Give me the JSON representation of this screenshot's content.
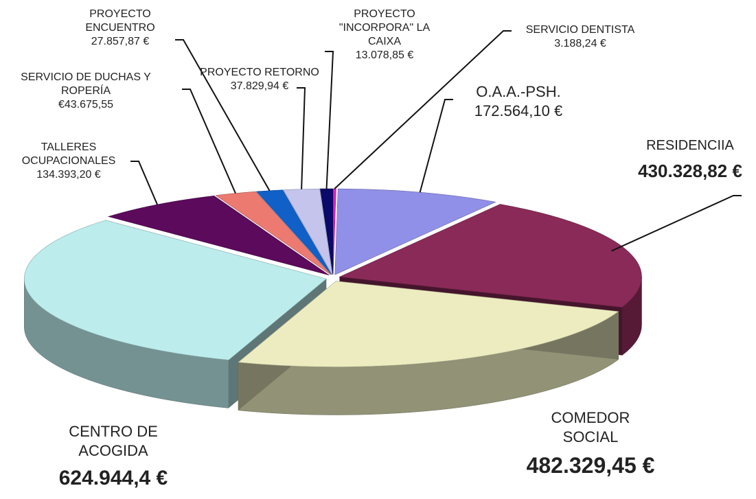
{
  "chart_data": {
    "type": "pie3d",
    "categories": [
      "O.A.A.-PSH.",
      "RESIDENCIIA",
      "COMEDOR SOCIAL",
      "CENTRO DE ACOGIDA",
      "TALLERES OCUPACIONALES",
      "SERVICIO DE DUCHAS Y ROPERÍA",
      "PROYECTO ENCUENTRO",
      "PROYECTO RETORNO",
      "PROYECTO \"INCORPORA\" LA CAIXA",
      "SERVICIO DENTISTA"
    ],
    "values": [
      172564.1,
      430328.82,
      482329.45,
      624944.4,
      134393.2,
      43675.55,
      27857.87,
      37829.94,
      13078.85,
      3188.24
    ],
    "value_labels": [
      "172.564,10 €",
      "430.328,82 €",
      "482.329,45 €",
      "624.944,4 €",
      "134.393,20 €",
      "€43.675,55",
      "27.857,87 €",
      "37.829,94 €",
      "13.078,85 €",
      "3.188,24 €"
    ],
    "colors": [
      "#9090e8",
      "#8a2a58",
      "#ececc0",
      "#bcecec",
      "#5c0a5c",
      "#ec7a70",
      "#1060c8",
      "#c4c4ec",
      "#0a0a6a",
      "#e020c0"
    ]
  }
}
